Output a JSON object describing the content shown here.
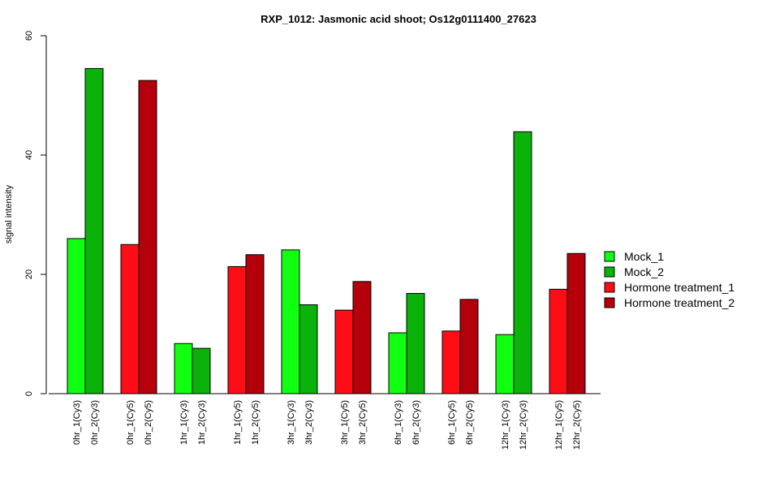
{
  "chart_data": {
    "type": "bar",
    "title": "RXP_1012: Jasmonic acid shoot; Os12g0111400_27623",
    "xlabel": "",
    "ylabel": "signal intensity",
    "ylim": [
      0,
      60
    ],
    "yticks": [
      0,
      20,
      40,
      60
    ],
    "grid": false,
    "legend_position": "right",
    "bars": [
      {
        "label": "0hr_1(Cy3)",
        "value": 26.0,
        "series": "Mock_1"
      },
      {
        "label": "0hr_2(Cy3)",
        "value": 54.5,
        "series": "Mock_2"
      },
      {
        "label": "0hr_1(Cy5)",
        "value": 25.0,
        "series": "Hormone treatment_1"
      },
      {
        "label": "0hr_2(Cy5)",
        "value": 52.5,
        "series": "Hormone treatment_2"
      },
      {
        "label": "1hr_1(Cy3)",
        "value": 8.4,
        "series": "Mock_1"
      },
      {
        "label": "1hr_2(Cy3)",
        "value": 7.6,
        "series": "Mock_2"
      },
      {
        "label": "1hr_1(Cy5)",
        "value": 21.3,
        "series": "Hormone treatment_1"
      },
      {
        "label": "1hr_2(Cy5)",
        "value": 23.3,
        "series": "Hormone treatment_2"
      },
      {
        "label": "3hr_1(Cy3)",
        "value": 24.1,
        "series": "Mock_1"
      },
      {
        "label": "3hr_2(Cy3)",
        "value": 14.9,
        "series": "Mock_2"
      },
      {
        "label": "3hr_1(Cy5)",
        "value": 14.0,
        "series": "Hormone treatment_1"
      },
      {
        "label": "3hr_2(Cy5)",
        "value": 18.8,
        "series": "Hormone treatment_2"
      },
      {
        "label": "6hr_1(Cy3)",
        "value": 10.2,
        "series": "Mock_1"
      },
      {
        "label": "6hr_2(Cy3)",
        "value": 16.8,
        "series": "Mock_2"
      },
      {
        "label": "6hr_1(Cy5)",
        "value": 10.5,
        "series": "Hormone treatment_1"
      },
      {
        "label": "6hr_2(Cy5)",
        "value": 15.8,
        "series": "Hormone treatment_2"
      },
      {
        "label": "12hr_1(Cy3)",
        "value": 9.9,
        "series": "Mock_1"
      },
      {
        "label": "12hr_2(Cy3)",
        "value": 43.9,
        "series": "Mock_2"
      },
      {
        "label": "12hr_1(Cy5)",
        "value": 17.5,
        "series": "Hormone treatment_1"
      },
      {
        "label": "12hr_2(Cy5)",
        "value": 23.5,
        "series": "Hormone treatment_2"
      }
    ],
    "legend": [
      {
        "name": "Mock_1",
        "color": "#11ff11"
      },
      {
        "name": "Mock_2",
        "color": "#0ab20a"
      },
      {
        "name": "Hormone treatment_1",
        "color": "#ff0d16"
      },
      {
        "name": "Hormone treatment_2",
        "color": "#b3000a"
      }
    ]
  }
}
